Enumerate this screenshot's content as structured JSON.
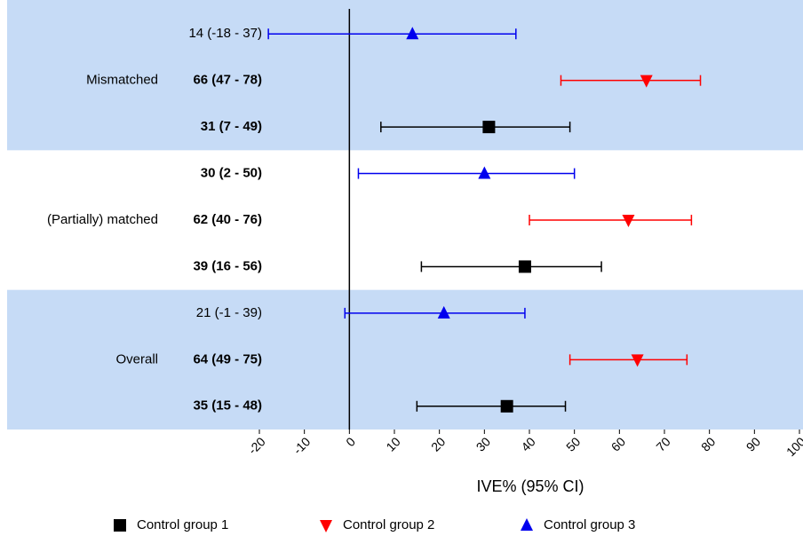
{
  "chart_data": {
    "type": "forest",
    "xlabel": "IVE%  (95% CI)",
    "categories": [
      "Mismatched",
      "(Partially) matched",
      "Overall"
    ],
    "series": [
      {
        "name": "Control group 1",
        "color": "#000000",
        "marker": "square",
        "values": [
          31,
          39,
          35
        ],
        "lower": [
          7,
          16,
          15
        ],
        "upper": [
          49,
          56,
          48
        ],
        "value_labels": [
          "31 (7 - 49)",
          "39 (16 - 56)",
          "35 (15 - 48)"
        ]
      },
      {
        "name": "Control group 2",
        "color": "#ff0000",
        "marker": "triangle-down",
        "values": [
          66,
          62,
          64
        ],
        "lower": [
          47,
          40,
          49
        ],
        "upper": [
          78,
          76,
          75
        ],
        "value_labels": [
          "66 (47 - 78)",
          "62 (40 - 76)",
          "64 (49 - 75)"
        ]
      },
      {
        "name": "Control group 3",
        "color": "#0000ee",
        "marker": "triangle-up",
        "values": [
          14,
          30,
          21
        ],
        "lower": [
          -18,
          2,
          -1
        ],
        "upper": [
          37,
          50,
          39
        ],
        "value_labels": [
          "14 (-18 - 37)",
          "30 (2 - 50)",
          "21 (-1 - 39)"
        ]
      }
    ],
    "xlim": [
      -20,
      100
    ],
    "xticks": [
      -20,
      -10,
      0,
      10,
      20,
      30,
      40,
      50,
      60,
      70,
      80,
      90,
      100
    ],
    "band_color": "#c6dbf6",
    "legend": "bottom"
  }
}
